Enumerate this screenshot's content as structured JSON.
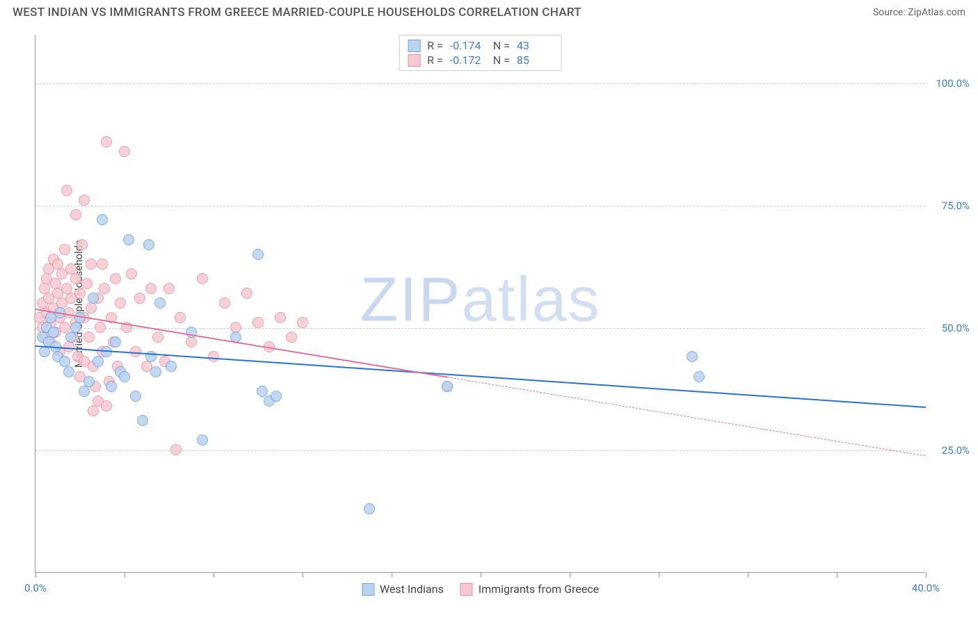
{
  "header": {
    "title": "WEST INDIAN VS IMMIGRANTS FROM GREECE MARRIED-COUPLE HOUSEHOLDS CORRELATION CHART",
    "source": "Source: ZipAtlas.com"
  },
  "watermark": {
    "bold": "ZIP",
    "light": "atlas"
  },
  "chart": {
    "type": "scatter",
    "background_color": "#ffffff",
    "grid_color": "#cccccc",
    "axis_color": "#999999",
    "label_color": "#444444",
    "tick_label_color": "#3b7dd8",
    "ylabel": "Married-couple Households",
    "xlim": [
      0,
      40
    ],
    "ylim": [
      0,
      110
    ],
    "label_fontsize": 15,
    "xticks": [
      0,
      4,
      8,
      12,
      16,
      20,
      24,
      28,
      32,
      36,
      40
    ],
    "xtick_labels": {
      "0": "0.0%",
      "40": "40.0%"
    },
    "yticks": [
      25,
      50,
      75,
      100
    ],
    "ytick_labels": {
      "25": "25.0%",
      "50": "50.0%",
      "75": "75.0%",
      "100": "100.0%"
    },
    "series": [
      {
        "name": "West Indians",
        "color_fill": "#b9d3f0",
        "color_stroke": "#6da2dd",
        "marker_size": 16,
        "trend": {
          "x1": 0,
          "y1": 46.5,
          "x2": 40,
          "y2": 34,
          "color": "#2a6fd6",
          "width": 2,
          "solid_until_x": 40
        },
        "stats": {
          "R": "-0.174",
          "N": "43"
        },
        "points": [
          [
            0.3,
            48
          ],
          [
            0.4,
            45
          ],
          [
            0.5,
            50
          ],
          [
            0.6,
            47
          ],
          [
            0.7,
            52
          ],
          [
            0.8,
            49
          ],
          [
            0.9,
            46
          ],
          [
            1.0,
            44
          ],
          [
            1.1,
            53
          ],
          [
            1.3,
            43
          ],
          [
            1.5,
            41
          ],
          [
            1.6,
            48
          ],
          [
            1.8,
            50
          ],
          [
            2.0,
            52
          ],
          [
            2.2,
            37
          ],
          [
            2.4,
            39
          ],
          [
            2.6,
            56
          ],
          [
            2.8,
            43
          ],
          [
            3.0,
            72
          ],
          [
            3.2,
            45
          ],
          [
            3.4,
            38
          ],
          [
            3.6,
            47
          ],
          [
            3.8,
            41
          ],
          [
            4.0,
            40
          ],
          [
            4.2,
            68
          ],
          [
            4.5,
            36
          ],
          [
            4.8,
            31
          ],
          [
            5.1,
            67
          ],
          [
            5.2,
            44
          ],
          [
            5.4,
            41
          ],
          [
            5.6,
            55
          ],
          [
            6.1,
            42
          ],
          [
            7.0,
            49
          ],
          [
            7.5,
            27
          ],
          [
            9.0,
            48
          ],
          [
            10.0,
            65
          ],
          [
            10.2,
            37
          ],
          [
            10.5,
            35
          ],
          [
            10.8,
            36
          ],
          [
            15.0,
            13
          ],
          [
            18.5,
            38
          ],
          [
            29.5,
            44
          ],
          [
            29.8,
            40
          ]
        ]
      },
      {
        "name": "Immigrants from Greece",
        "color_fill": "#f6c9d2",
        "color_stroke": "#e98fa5",
        "marker_size": 16,
        "trend": {
          "x1": 0,
          "y1": 54,
          "x2": 40,
          "y2": 24,
          "color": "#e27095",
          "width": 2,
          "solid_until_x": 18.5
        },
        "stats": {
          "R": "-0.172",
          "N": "85"
        },
        "points": [
          [
            0.2,
            52
          ],
          [
            0.3,
            55
          ],
          [
            0.3,
            50
          ],
          [
            0.4,
            58
          ],
          [
            0.4,
            48
          ],
          [
            0.5,
            60
          ],
          [
            0.5,
            53
          ],
          [
            0.6,
            56
          ],
          [
            0.6,
            62
          ],
          [
            0.7,
            51
          ],
          [
            0.7,
            47
          ],
          [
            0.8,
            64
          ],
          [
            0.8,
            54
          ],
          [
            0.9,
            59
          ],
          [
            0.9,
            49
          ],
          [
            1.0,
            57
          ],
          [
            1.0,
            63
          ],
          [
            1.1,
            52
          ],
          [
            1.1,
            45
          ],
          [
            1.2,
            61
          ],
          [
            1.2,
            55
          ],
          [
            1.3,
            50
          ],
          [
            1.3,
            66
          ],
          [
            1.4,
            58
          ],
          [
            1.5,
            53
          ],
          [
            1.5,
            46
          ],
          [
            1.6,
            62
          ],
          [
            1.6,
            56
          ],
          [
            1.7,
            48
          ],
          [
            1.8,
            60
          ],
          [
            1.8,
            51
          ],
          [
            1.9,
            44
          ],
          [
            2.0,
            57
          ],
          [
            2.0,
            40
          ],
          [
            2.1,
            67
          ],
          [
            2.2,
            52
          ],
          [
            2.2,
            43
          ],
          [
            2.3,
            59
          ],
          [
            2.4,
            48
          ],
          [
            2.5,
            54
          ],
          [
            2.5,
            63
          ],
          [
            2.6,
            42
          ],
          [
            2.7,
            38
          ],
          [
            2.8,
            56
          ],
          [
            2.9,
            50
          ],
          [
            3.0,
            63
          ],
          [
            3.0,
            45
          ],
          [
            3.1,
            58
          ],
          [
            3.2,
            88
          ],
          [
            3.3,
            39
          ],
          [
            3.4,
            52
          ],
          [
            3.5,
            47
          ],
          [
            3.6,
            60
          ],
          [
            3.7,
            42
          ],
          [
            3.8,
            55
          ],
          [
            4.0,
            86
          ],
          [
            4.1,
            50
          ],
          [
            4.3,
            61
          ],
          [
            4.5,
            45
          ],
          [
            4.7,
            56
          ],
          [
            5.0,
            42
          ],
          [
            5.2,
            58
          ],
          [
            5.5,
            48
          ],
          [
            5.8,
            43
          ],
          [
            6.0,
            58
          ],
          [
            6.3,
            25
          ],
          [
            6.5,
            52
          ],
          [
            7.0,
            47
          ],
          [
            7.5,
            60
          ],
          [
            8.0,
            44
          ],
          [
            8.5,
            55
          ],
          [
            9.0,
            50
          ],
          [
            9.5,
            57
          ],
          [
            10.0,
            51
          ],
          [
            10.5,
            46
          ],
          [
            11.0,
            52
          ],
          [
            11.5,
            48
          ],
          [
            12.0,
            51
          ],
          [
            1.4,
            78
          ],
          [
            1.8,
            73
          ],
          [
            2.2,
            76
          ],
          [
            2.6,
            33
          ],
          [
            2.8,
            35
          ],
          [
            3.2,
            34
          ],
          [
            18.5,
            38
          ]
        ]
      }
    ]
  },
  "legend": {
    "series1": "West Indians",
    "series2": "Immigrants from Greece"
  }
}
